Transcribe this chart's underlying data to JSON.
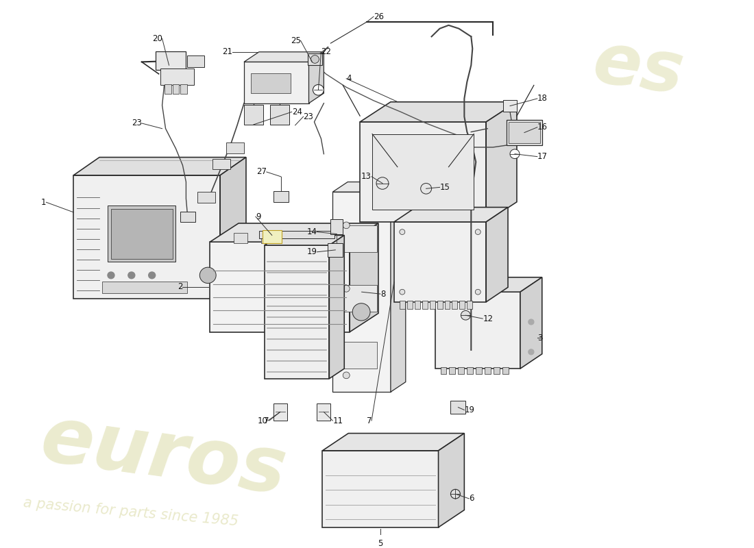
{
  "background_color": "#ffffff",
  "line_color": "#2a2a2a",
  "label_color": "#111111",
  "lw": 0.9,
  "watermark1": "euros",
  "watermark2": "a passion for parts since 1985",
  "watermark_color": "#d8d8a0",
  "watermark_alpha": 0.5,
  "logo_text": "es",
  "logo_color": "#d8d8a0",
  "logo_alpha": 0.45,
  "fig_w": 11.0,
  "fig_h": 8.0,
  "dpi": 100,
  "xlim": [
    0,
    11
  ],
  "ylim": [
    0,
    8
  ],
  "label_fontsize": 8.5
}
